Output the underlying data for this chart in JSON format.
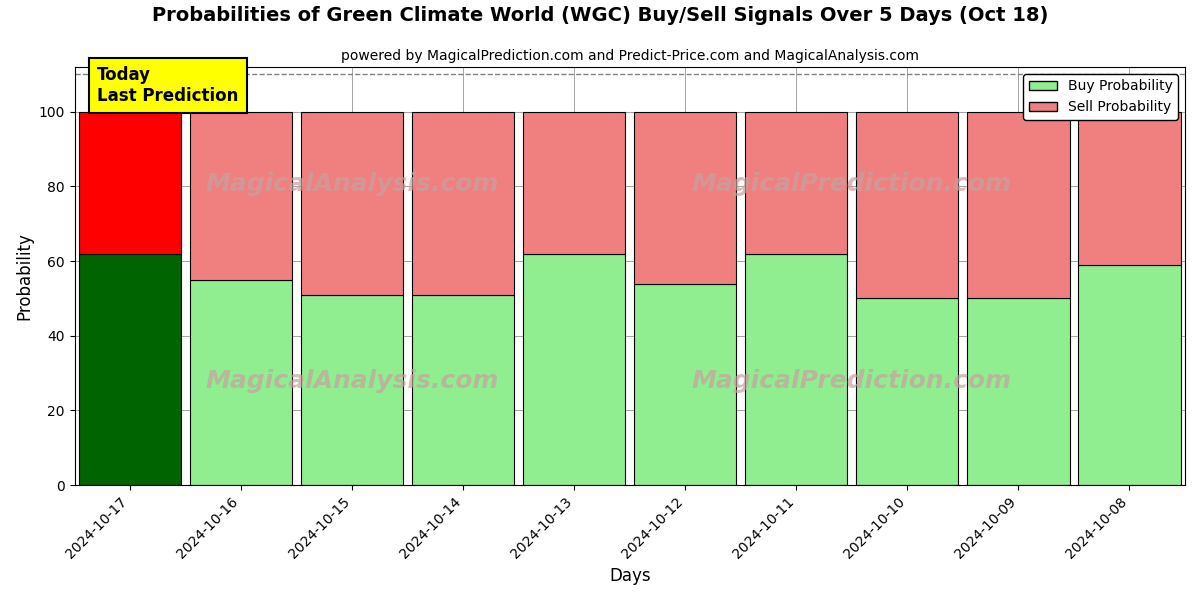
{
  "title": "Probabilities of Green Climate World (WGC) Buy/Sell Signals Over 5 Days (Oct 18)",
  "subtitle": "powered by MagicalPrediction.com and Predict-Price.com and MagicalAnalysis.com",
  "xlabel": "Days",
  "ylabel": "Probability",
  "dates": [
    "2024-10-17",
    "2024-10-16",
    "2024-10-15",
    "2024-10-14",
    "2024-10-13",
    "2024-10-12",
    "2024-10-11",
    "2024-10-10",
    "2024-10-09",
    "2024-10-08"
  ],
  "buy_values": [
    62,
    55,
    51,
    51,
    62,
    54,
    62,
    50,
    50,
    59
  ],
  "sell_values": [
    38,
    45,
    49,
    49,
    38,
    46,
    38,
    50,
    50,
    41
  ],
  "today_buy_color": "#006400",
  "today_sell_color": "#FF0000",
  "buy_color": "#90EE90",
  "sell_color": "#F08080",
  "today_label_bg": "#FFFF00",
  "today_label_text": "Today\nLast Prediction",
  "ylim": [
    0,
    112
  ],
  "dashed_line_y": 110,
  "watermark_top_left": "MagicalAnalysis.com",
  "watermark_top_right": "MagicalPrediction.com",
  "watermark_bottom_left": "MagicalAnalysis.com",
  "watermark_bottom_right": "MagicalPrediction.com",
  "legend_buy": "Buy Probability",
  "legend_sell": "Sell Probability",
  "bar_width": 0.92
}
